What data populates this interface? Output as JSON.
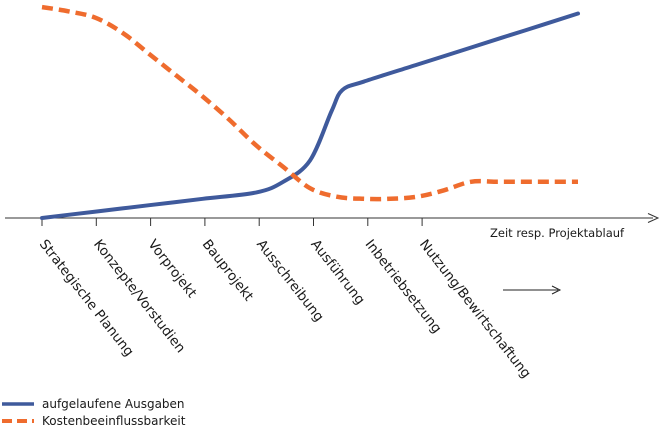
{
  "chart_data": {
    "type": "line",
    "title": "",
    "xlabel": "Zeit resp. Projektablauf",
    "ylabel": "",
    "ylim": [
      0,
      100
    ],
    "grid": false,
    "legend_position": "bottom-left",
    "categories": [
      "Strategische Planung",
      "Konzepte/Vorstudien",
      "Vorprojekt",
      "Bauprojekt",
      "Ausschreibung",
      "Ausführung",
      "Inbetriebsetzung",
      "Nutzung/Bewirtschaftung"
    ],
    "series": [
      {
        "name": "aufgelaufene Ausgaben",
        "color": "#3f5a9c",
        "style": "solid",
        "x": [
          0,
          1,
          2,
          3,
          4,
          4.5,
          5,
          5.4,
          5.6,
          6,
          7,
          8,
          9,
          10
        ],
        "values": [
          0,
          3,
          6,
          9,
          12,
          17,
          27,
          50,
          60,
          64,
          72,
          80,
          88,
          96
        ]
      },
      {
        "name": "Kostenbeeinflussbarkeit",
        "color": "#ef6c2e",
        "style": "dashed",
        "x": [
          0,
          0.5,
          1,
          1.5,
          2,
          2.5,
          3,
          3.5,
          4,
          4.5,
          5,
          5.5,
          6,
          6.5,
          7,
          7.5,
          8,
          8.5,
          9,
          9.5,
          10
        ],
        "values": [
          99,
          97,
          94,
          87,
          77,
          67,
          57,
          46,
          34,
          24,
          14,
          10,
          9,
          9,
          10,
          13,
          17,
          17,
          17,
          17,
          17
        ]
      }
    ],
    "annotations": [
      {
        "type": "arrow",
        "direction": "right"
      }
    ]
  }
}
